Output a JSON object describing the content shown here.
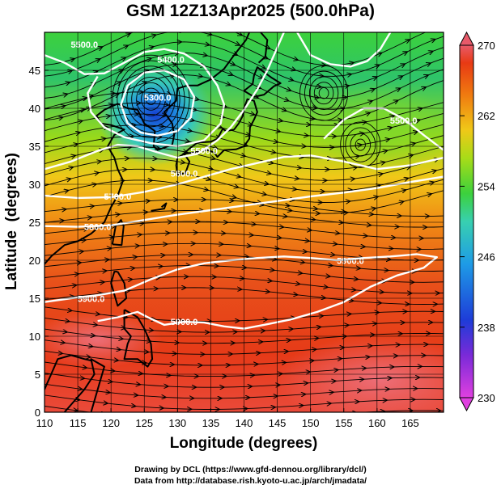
{
  "title": "GSM 12Z13Apr2025 (500.0hPa)",
  "map": {
    "xlabel": "Longitude (degrees)",
    "ylabel": "Latitude  (degrees)",
    "lon_range": [
      110,
      170
    ],
    "lat_range": [
      0,
      50
    ],
    "lon_ticks": [
      "110",
      "115",
      "120",
      "125",
      "130",
      "135",
      "140",
      "145",
      "150",
      "155",
      "160",
      "165"
    ],
    "lat_ticks": [
      "0",
      "5",
      "10",
      "15",
      "20",
      "25",
      "30",
      "35",
      "40",
      "45"
    ],
    "grid": true,
    "field": "temperature (colour shading) with wind streamlines and geopotential height contours",
    "colorbar": {
      "ticks": [
        "270",
        "262",
        "254",
        "246",
        "238",
        "230"
      ],
      "range": [
        230,
        270
      ],
      "colors": [
        "#e040e0",
        "#1e3cd8",
        "#1e9be6",
        "#38d0b0",
        "#3cd13c",
        "#a8dc18",
        "#f0c818",
        "#f07a10",
        "#e83a14",
        "#e85a6a"
      ]
    },
    "contour_labels": [
      {
        "text": "5900.0",
        "lon": 156,
        "lat": 19.5
      },
      {
        "text": "5900.0",
        "lon": 117,
        "lat": 14.5
      },
      {
        "text": "5900.0",
        "lon": 131,
        "lat": 11.5
      },
      {
        "text": "5800.0",
        "lon": 118,
        "lat": 24
      },
      {
        "text": "5700.0",
        "lon": 121,
        "lat": 28
      },
      {
        "text": "5600.0",
        "lon": 131,
        "lat": 31
      },
      {
        "text": "5500.0",
        "lon": 134,
        "lat": 34
      },
      {
        "text": "5300.0",
        "lon": 127,
        "lat": 41
      },
      {
        "text": "5400.0",
        "lon": 129,
        "lat": 46
      },
      {
        "text": "5500.0",
        "lon": 116,
        "lat": 48
      },
      {
        "text": "5500.0",
        "lon": 164,
        "lat": 38
      }
    ]
  },
  "credits": {
    "line1": "Drawing by DCL (https://www.gfd-dennou.org/library/dcl/)",
    "line2": "Data from http://database.rish.kyoto-u.ac.jp/arch/jmadata/"
  }
}
